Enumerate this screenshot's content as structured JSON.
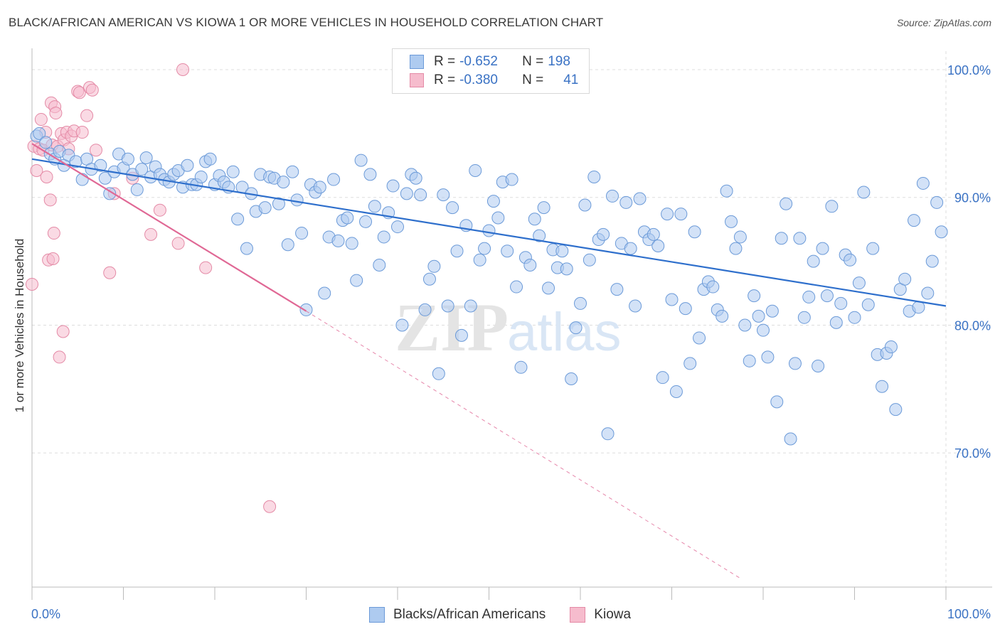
{
  "title": "BLACK/AFRICAN AMERICAN VS KIOWA 1 OR MORE VEHICLES IN HOUSEHOLD CORRELATION CHART",
  "source": "Source: ZipAtlas.com",
  "watermark": "ZIPatlas",
  "legend": {
    "rows": [
      {
        "r_label": "R =",
        "r_value": "-0.652",
        "n_label": "N =",
        "n_value": "198"
      },
      {
        "r_label": "R =",
        "r_value": "-0.380",
        "n_label": "N =",
        "n_value": "41"
      }
    ]
  },
  "colors": {
    "blue_fill": "#aecbf0",
    "blue_stroke": "#6b9ad8",
    "blue_line": "#2e6fcc",
    "pink_fill": "#f6bccd",
    "pink_stroke": "#e48aa6",
    "pink_line": "#e06895",
    "axis_text": "#3a72c4",
    "grid": "#dddddd"
  },
  "chart_data": {
    "type": "scatter",
    "title": "BLACK/AFRICAN AMERICAN VS KIOWA 1 OR MORE VEHICLES IN HOUSEHOLD CORRELATION CHART",
    "xlabel": "",
    "ylabel": "1 or more Vehicles in Household",
    "xlim": [
      0,
      100
    ],
    "ylim": [
      59.5,
      102
    ],
    "x_tick_labels": [
      "0.0%",
      "100.0%"
    ],
    "y_ticks": [
      100,
      90,
      80,
      70
    ],
    "y_tick_labels": [
      "100.0%",
      "90.0%",
      "80.0%",
      "70.0%"
    ],
    "grid": true,
    "legend_placement": "bottom",
    "series": [
      {
        "name": "Blacks/African Americans",
        "color": "#aecbf0",
        "trend": {
          "x": [
            0,
            100
          ],
          "y": [
            93.0,
            81.5
          ]
        },
        "points": [
          [
            0.5,
            94.8
          ],
          [
            0.8,
            95.0
          ],
          [
            1.5,
            94.3
          ],
          [
            2,
            93.4
          ],
          [
            2.5,
            93.0
          ],
          [
            3,
            93.6
          ],
          [
            3.5,
            92.5
          ],
          [
            4,
            93.3
          ],
          [
            4.8,
            92.8
          ],
          [
            5.5,
            91.4
          ],
          [
            6,
            93.0
          ],
          [
            6.5,
            92.2
          ],
          [
            7.5,
            92.5
          ],
          [
            8,
            91.5
          ],
          [
            8.5,
            90.3
          ],
          [
            9,
            92.0
          ],
          [
            9.5,
            93.4
          ],
          [
            10,
            92.3
          ],
          [
            10.5,
            93.0
          ],
          [
            11,
            91.8
          ],
          [
            11.5,
            90.6
          ],
          [
            12,
            92.2
          ],
          [
            12.5,
            93.1
          ],
          [
            13,
            91.6
          ],
          [
            13.5,
            92.4
          ],
          [
            14,
            91.8
          ],
          [
            14.5,
            91.4
          ],
          [
            15,
            91.2
          ],
          [
            15.5,
            91.8
          ],
          [
            16,
            92.1
          ],
          [
            16.5,
            90.8
          ],
          [
            17,
            92.5
          ],
          [
            17.5,
            91.0
          ],
          [
            18,
            91.0
          ],
          [
            18.5,
            91.6
          ],
          [
            19,
            92.8
          ],
          [
            19.5,
            93.0
          ],
          [
            20,
            91.0
          ],
          [
            20.5,
            91.7
          ],
          [
            21,
            91.2
          ],
          [
            21.5,
            90.8
          ],
          [
            22,
            92.0
          ],
          [
            22.5,
            88.3
          ],
          [
            23,
            90.8
          ],
          [
            23.5,
            86.0
          ],
          [
            24,
            90.3
          ],
          [
            24.5,
            88.9
          ],
          [
            25,
            91.8
          ],
          [
            25.5,
            89.2
          ],
          [
            26,
            91.6
          ],
          [
            26.5,
            91.5
          ],
          [
            27,
            89.5
          ],
          [
            27.5,
            91.2
          ],
          [
            28,
            86.3
          ],
          [
            28.5,
            92.0
          ],
          [
            29,
            89.8
          ],
          [
            29.5,
            87.2
          ],
          [
            30,
            81.2
          ],
          [
            30.5,
            91.0
          ],
          [
            31,
            90.4
          ],
          [
            31.5,
            90.8
          ],
          [
            32,
            82.5
          ],
          [
            32.5,
            86.9
          ],
          [
            33,
            91.4
          ],
          [
            33.5,
            86.6
          ],
          [
            34,
            88.2
          ],
          [
            34.5,
            88.4
          ],
          [
            35,
            86.4
          ],
          [
            35.5,
            83.5
          ],
          [
            36,
            92.9
          ],
          [
            36.5,
            88.1
          ],
          [
            37,
            91.8
          ],
          [
            37.5,
            89.3
          ],
          [
            38,
            84.7
          ],
          [
            38.5,
            86.9
          ],
          [
            39,
            88.8
          ],
          [
            39.5,
            90.9
          ],
          [
            40,
            87.7
          ],
          [
            40.5,
            80.0
          ],
          [
            41,
            90.3
          ],
          [
            41.5,
            91.8
          ],
          [
            42,
            91.5
          ],
          [
            42.5,
            90.2
          ],
          [
            43,
            81.2
          ],
          [
            43.5,
            83.6
          ],
          [
            44,
            84.6
          ],
          [
            44.5,
            76.2
          ],
          [
            45,
            90.2
          ],
          [
            45.5,
            81.5
          ],
          [
            46,
            89.2
          ],
          [
            46.5,
            85.8
          ],
          [
            47,
            79.2
          ],
          [
            47.5,
            87.8
          ],
          [
            48,
            81.5
          ],
          [
            48.5,
            92.1
          ],
          [
            49,
            85.1
          ],
          [
            49.5,
            86.0
          ],
          [
            50,
            87.4
          ],
          [
            50.5,
            89.7
          ],
          [
            51,
            88.4
          ],
          [
            51.5,
            91.2
          ],
          [
            52,
            85.8
          ],
          [
            52.5,
            91.4
          ],
          [
            53,
            83.0
          ],
          [
            53.5,
            76.7
          ],
          [
            54,
            85.3
          ],
          [
            54.5,
            84.7
          ],
          [
            55,
            88.3
          ],
          [
            55.5,
            87.0
          ],
          [
            56,
            89.2
          ],
          [
            56.5,
            82.9
          ],
          [
            57,
            85.9
          ],
          [
            57.5,
            84.5
          ],
          [
            58,
            85.8
          ],
          [
            58.5,
            84.4
          ],
          [
            59,
            75.8
          ],
          [
            59.5,
            79.8
          ],
          [
            60,
            81.7
          ],
          [
            60.5,
            89.4
          ],
          [
            61,
            85.1
          ],
          [
            61.5,
            91.6
          ],
          [
            62,
            86.7
          ],
          [
            62.5,
            87.1
          ],
          [
            63,
            71.5
          ],
          [
            63.5,
            90.1
          ],
          [
            64,
            82.8
          ],
          [
            64.5,
            86.4
          ],
          [
            65,
            89.6
          ],
          [
            65.5,
            86.0
          ],
          [
            66,
            81.5
          ],
          [
            66.5,
            89.9
          ],
          [
            67,
            87.3
          ],
          [
            67.5,
            86.7
          ],
          [
            68,
            87.1
          ],
          [
            68.5,
            86.2
          ],
          [
            69,
            75.9
          ],
          [
            69.5,
            88.7
          ],
          [
            70,
            82.0
          ],
          [
            70.5,
            74.8
          ],
          [
            71,
            88.7
          ],
          [
            71.5,
            81.3
          ],
          [
            72,
            77.0
          ],
          [
            72.5,
            87.3
          ],
          [
            73,
            79.0
          ],
          [
            73.5,
            82.8
          ],
          [
            74,
            83.4
          ],
          [
            74.5,
            83.0
          ],
          [
            75,
            81.2
          ],
          [
            75.5,
            80.7
          ],
          [
            76,
            90.5
          ],
          [
            76.5,
            88.1
          ],
          [
            77,
            86.0
          ],
          [
            77.5,
            86.9
          ],
          [
            78,
            80.0
          ],
          [
            78.5,
            77.2
          ],
          [
            79,
            82.3
          ],
          [
            79.5,
            80.7
          ],
          [
            80,
            79.6
          ],
          [
            80.5,
            77.5
          ],
          [
            81,
            81.1
          ],
          [
            81.5,
            74.0
          ],
          [
            82,
            86.8
          ],
          [
            82.5,
            89.5
          ],
          [
            83,
            71.1
          ],
          [
            83.5,
            77.0
          ],
          [
            84,
            86.8
          ],
          [
            84.5,
            80.6
          ],
          [
            85,
            82.2
          ],
          [
            85.5,
            85.0
          ],
          [
            86,
            76.8
          ],
          [
            86.5,
            86.0
          ],
          [
            87,
            82.3
          ],
          [
            87.5,
            89.3
          ],
          [
            88,
            80.2
          ],
          [
            88.5,
            81.7
          ],
          [
            89,
            85.5
          ],
          [
            89.5,
            85.1
          ],
          [
            90,
            80.6
          ],
          [
            90.5,
            83.3
          ],
          [
            91,
            90.4
          ],
          [
            91.5,
            81.6
          ],
          [
            92,
            86.0
          ],
          [
            92.5,
            77.7
          ],
          [
            93,
            75.2
          ],
          [
            93.5,
            77.8
          ],
          [
            94,
            78.3
          ],
          [
            94.5,
            73.4
          ],
          [
            95,
            82.8
          ],
          [
            95.5,
            83.6
          ],
          [
            96,
            81.1
          ],
          [
            96.5,
            88.2
          ],
          [
            97,
            81.4
          ],
          [
            97.5,
            91.1
          ],
          [
            98,
            82.5
          ],
          [
            98.5,
            85.0
          ],
          [
            99,
            89.6
          ],
          [
            99.5,
            87.3
          ]
        ]
      },
      {
        "name": "Kiowa",
        "color": "#f6bccd",
        "trend": {
          "x": [
            0,
            30
          ],
          "y": [
            94.2,
            81.1
          ]
        },
        "trend_extension": {
          "x": [
            30,
            77.7
          ],
          "y": [
            81.1,
            60.1
          ]
        },
        "points": [
          [
            0.0,
            83.2
          ],
          [
            0.2,
            94.0
          ],
          [
            0.5,
            92.1
          ],
          [
            0.8,
            93.8
          ],
          [
            1.0,
            96.1
          ],
          [
            1.2,
            93.7
          ],
          [
            1.5,
            95.1
          ],
          [
            1.6,
            91.6
          ],
          [
            1.8,
            85.1
          ],
          [
            2.0,
            89.8
          ],
          [
            2.1,
            97.4
          ],
          [
            2.2,
            94.1
          ],
          [
            2.3,
            85.2
          ],
          [
            2.4,
            87.2
          ],
          [
            2.5,
            97.1
          ],
          [
            2.6,
            96.6
          ],
          [
            2.8,
            94.0
          ],
          [
            3.0,
            77.5
          ],
          [
            3.2,
            95.0
          ],
          [
            3.4,
            79.5
          ],
          [
            3.5,
            94.5
          ],
          [
            3.8,
            95.1
          ],
          [
            4.0,
            93.8
          ],
          [
            4.3,
            94.8
          ],
          [
            4.6,
            95.2
          ],
          [
            5.0,
            98.3
          ],
          [
            5.2,
            98.2
          ],
          [
            5.5,
            95.1
          ],
          [
            6.0,
            96.4
          ],
          [
            6.3,
            98.6
          ],
          [
            6.6,
            98.4
          ],
          [
            7.0,
            93.7
          ],
          [
            8.5,
            84.1
          ],
          [
            9.0,
            90.3
          ],
          [
            11.0,
            91.5
          ],
          [
            13.0,
            87.1
          ],
          [
            14.0,
            89.0
          ],
          [
            16.0,
            86.4
          ],
          [
            16.5,
            100.0
          ],
          [
            19.0,
            84.5
          ],
          [
            26.0,
            65.8
          ]
        ]
      }
    ]
  }
}
